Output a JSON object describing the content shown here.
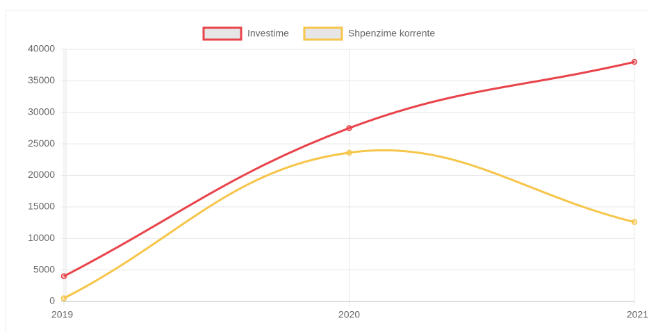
{
  "chart_data": {
    "type": "line",
    "categories": [
      "2019",
      "2020",
      "2021"
    ],
    "series": [
      {
        "name": "Investime",
        "color": "#e8444b",
        "values": [
          4000,
          27500,
          38000
        ]
      },
      {
        "name": "Shpenzime korrente",
        "color": "#f6c54a",
        "values": [
          500,
          23600,
          12600
        ]
      }
    ],
    "ylim": [
      0,
      40000
    ],
    "yticks": [
      0,
      5000,
      10000,
      15000,
      20000,
      25000,
      30000,
      35000,
      40000
    ],
    "grid": true,
    "legend": "top"
  }
}
